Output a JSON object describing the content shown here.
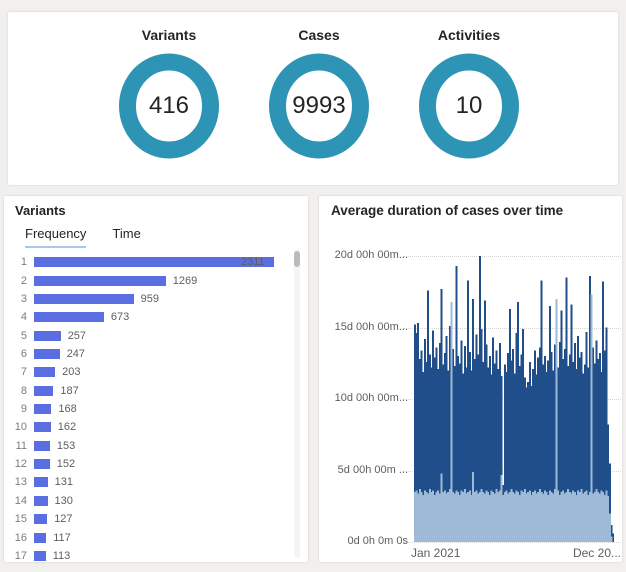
{
  "colors": {
    "page_bg": "#F2F0EE",
    "card_border": "#E7E5E3",
    "kpi_ring": "#2E94B5",
    "text_primary": "#252423",
    "text_secondary": "#605E5C",
    "rank_text": "#7E7C7A",
    "variant_bar": "#5B6EE1",
    "tab_underline": "#A9C7E8",
    "duration_dark": "#1F4E8A",
    "duration_light": "#9FBAD6",
    "gridline": "#D6D4D2",
    "scroll_thumb": "#BDBBB9",
    "scroll_track": "#F6F5F4"
  },
  "kpi_section": {
    "items": [
      {
        "label": "Variants",
        "value": "416"
      },
      {
        "label": "Cases",
        "value": "9993"
      },
      {
        "label": "Activities",
        "value": "10"
      }
    ]
  },
  "variants_panel": {
    "title": "Variants",
    "tabs": [
      {
        "label": "Frequency",
        "active": true
      },
      {
        "label": "Time",
        "active": false
      }
    ]
  },
  "duration_panel": {
    "title": "Average duration of cases over time"
  },
  "chart_data": [
    {
      "type": "bar",
      "orientation": "horizontal",
      "title": "Variants",
      "active_tab": "Frequency",
      "categories": [
        1,
        2,
        3,
        4,
        5,
        6,
        7,
        8,
        9,
        10,
        11,
        12,
        13,
        14,
        15,
        16,
        17
      ],
      "values": [
        2311,
        1269,
        959,
        673,
        257,
        247,
        203,
        187,
        168,
        162,
        153,
        152,
        131,
        130,
        127,
        117,
        113
      ],
      "bar_color": "#5B6EE1",
      "value_labels_shown": true,
      "xlim": [
        0,
        2311
      ]
    },
    {
      "type": "bar",
      "subtype": "daily-time-series",
      "title": "Average duration of cases over time",
      "x_axis": {
        "start_label": "Jan 2021",
        "end_label": "Dec 20..."
      },
      "y_ticks": [
        "0d 0h 0m 0s",
        "5d 00h 00m ...",
        "10d 00h 00m...",
        "15d 00h 00m...",
        "20d 00h 00m..."
      ],
      "y_tick_days": [
        0,
        5,
        10,
        15,
        20
      ],
      "ylim_days": [
        0,
        20
      ],
      "grid": "dotted-horizontal",
      "series": [
        {
          "name": "dark",
          "color": "#1F4E8A",
          "unit": "days",
          "values": [
            15.2,
            14.6,
            15.3,
            12.8,
            13.4,
            11.9,
            14.2,
            12.6,
            17.6,
            13.1,
            12.2,
            14.8,
            12.9,
            13.6,
            12.1,
            13.9,
            17.7,
            12.4,
            13.2,
            14.4,
            12.0,
            15.1,
            12.7,
            13.5,
            12.3,
            19.3,
            13.0,
            12.5,
            14.1,
            11.8,
            13.7,
            12.2,
            18.3,
            13.3,
            12.0,
            17.0,
            12.8,
            14.5,
            13.1,
            20.0,
            14.9,
            12.6,
            16.9,
            13.8,
            12.2,
            13.0,
            11.7,
            14.3,
            12.5,
            13.4,
            12.1,
            13.9,
            11.6,
            4.0,
            12.4,
            11.9,
            13.2,
            16.3,
            12.7,
            13.5,
            11.8,
            14.6,
            16.8,
            12.3,
            13.1,
            14.9,
            11.5,
            10.8,
            11.2,
            12.6,
            10.9,
            12.1,
            13.4,
            11.7,
            12.9,
            13.6,
            18.3,
            12.4,
            13.0,
            11.9,
            12.7,
            16.5,
            13.3,
            12.0,
            13.8,
            12.5,
            12.2,
            14.0,
            16.2,
            12.8,
            13.5,
            18.5,
            12.3,
            13.1,
            16.6,
            12.6,
            13.9,
            12.1,
            14.4,
            12.9,
            13.3,
            11.8,
            12.4,
            14.7,
            12.2,
            18.6,
            12.0,
            13.6,
            12.5,
            14.1,
            12.8,
            13.2,
            11.9,
            18.2,
            13.4,
            15.0,
            8.2,
            5.5,
            1.2,
            0.6
          ]
        },
        {
          "name": "light",
          "color": "#9FBAD6",
          "unit": "days",
          "values": [
            3.5,
            3.6,
            3.4,
            3.7,
            3.5,
            3.3,
            3.6,
            3.5,
            3.4,
            3.7,
            3.5,
            3.6,
            3.3,
            3.5,
            3.6,
            3.4,
            4.8,
            3.5,
            3.6,
            3.4,
            3.5,
            3.7,
            16.8,
            3.5,
            3.4,
            3.6,
            3.5,
            3.3,
            3.6,
            3.5,
            3.7,
            3.4,
            3.5,
            3.6,
            3.3,
            4.9,
            3.5,
            3.6,
            3.4,
            3.5,
            3.7,
            3.5,
            3.4,
            3.6,
            3.5,
            3.3,
            3.6,
            3.5,
            3.4,
            3.7,
            3.5,
            3.6,
            4.7,
            3.3,
            3.5,
            3.6,
            3.4,
            3.5,
            3.7,
            3.5,
            3.4,
            3.6,
            3.5,
            3.3,
            3.6,
            3.5,
            3.7,
            3.4,
            3.5,
            3.6,
            3.3,
            3.5,
            3.6,
            3.4,
            3.5,
            3.7,
            3.5,
            3.4,
            3.6,
            3.5,
            3.3,
            3.6,
            3.5,
            3.4,
            3.7,
            17.0,
            3.6,
            3.3,
            3.5,
            3.6,
            3.4,
            3.5,
            3.7,
            3.5,
            3.4,
            3.6,
            3.5,
            3.3,
            3.6,
            3.5,
            3.7,
            3.4,
            3.5,
            3.6,
            3.3,
            3.5,
            17.3,
            3.4,
            3.5,
            3.7,
            3.5,
            3.4,
            3.6,
            3.5,
            3.3,
            3.6,
            3.2,
            2.0,
            0.4,
            0
          ]
        }
      ]
    }
  ]
}
